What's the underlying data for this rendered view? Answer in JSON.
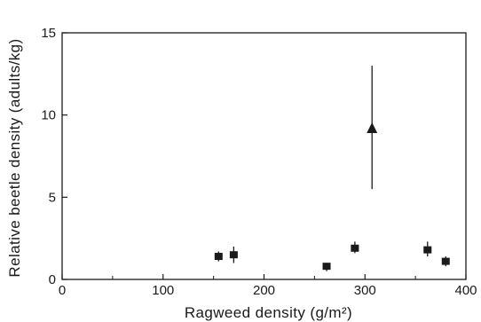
{
  "chart_data": {
    "type": "scatter",
    "title": "",
    "xlabel": "Ragweed density (g/m²)",
    "ylabel": "Relative beetle density (adults/kg)",
    "xlim": [
      0,
      400
    ],
    "ylim": [
      0,
      15
    ],
    "x_ticks": [
      0,
      100,
      200,
      300,
      400
    ],
    "y_ticks": [
      0,
      5,
      10,
      15
    ],
    "x_tick_labels": [
      "0",
      "100",
      "200",
      "300",
      "400"
    ],
    "y_tick_labels": [
      "0",
      "5",
      "10",
      "15"
    ],
    "grid": false,
    "legend": "none",
    "series": [
      {
        "marker": "square",
        "points": [
          {
            "x": 155,
            "y": 1.4,
            "ylow": 1.1,
            "yhigh": 1.7
          },
          {
            "x": 170,
            "y": 1.5,
            "ylow": 1.0,
            "yhigh": 2.0
          },
          {
            "x": 262,
            "y": 0.8,
            "ylow": 0.5,
            "yhigh": 1.0
          },
          {
            "x": 290,
            "y": 1.9,
            "ylow": 1.6,
            "yhigh": 2.3
          },
          {
            "x": 362,
            "y": 1.8,
            "ylow": 1.4,
            "yhigh": 2.3
          },
          {
            "x": 380,
            "y": 1.1,
            "ylow": 0.8,
            "yhigh": 1.4
          }
        ]
      },
      {
        "marker": "triangle",
        "points": [
          {
            "x": 307,
            "y": 9.2,
            "ylow": 5.5,
            "yhigh": 13.0
          }
        ]
      }
    ]
  }
}
